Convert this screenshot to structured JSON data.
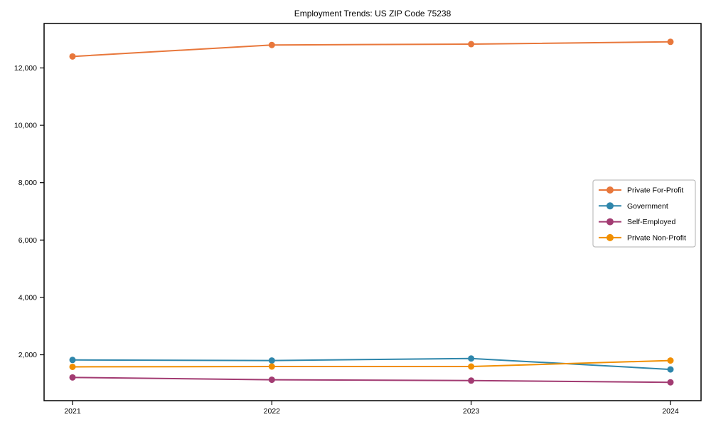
{
  "chart_data": {
    "type": "line",
    "title": "Employment Trends: US ZIP Code 75238",
    "xlabel": "",
    "ylabel": "",
    "x": [
      2021,
      2022,
      2023,
      2024
    ],
    "xtick_labels": [
      "2021",
      "2022",
      "2023",
      "2024"
    ],
    "yticks": [
      2000,
      4000,
      6000,
      8000,
      10000,
      12000
    ],
    "ytick_labels": [
      "2,000",
      "4,000",
      "6,000",
      "8,000",
      "10,000",
      "12,000"
    ],
    "ylim": [
      400,
      13550
    ],
    "grid": false,
    "marker": "circle",
    "legend_position": "center-right",
    "series": [
      {
        "name": "Private For-Profit",
        "color": "#E8773B",
        "values": [
          12400,
          12800,
          12830,
          12910
        ]
      },
      {
        "name": "Government",
        "color": "#2E86AB",
        "values": [
          1820,
          1800,
          1870,
          1490
        ]
      },
      {
        "name": "Self-Employed",
        "color": "#A23B72",
        "values": [
          1210,
          1130,
          1100,
          1040
        ]
      },
      {
        "name": "Private Non-Profit",
        "color": "#F18F01",
        "values": [
          1580,
          1590,
          1590,
          1800
        ]
      }
    ],
    "colors": {
      "spine": "#000000",
      "background": "#ffffff",
      "legend_border": "#b0b0b0",
      "legend_background": "#ffffff"
    }
  }
}
